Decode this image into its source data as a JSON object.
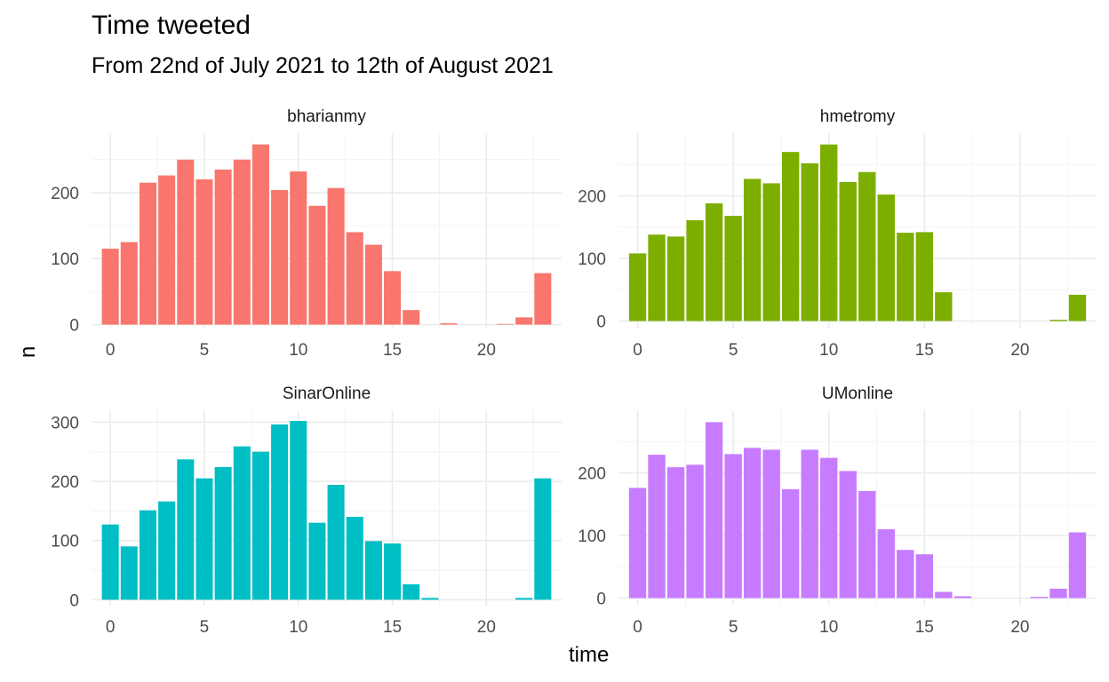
{
  "title": "Time tweeted",
  "subtitle": "From 22nd of July 2021 to 12th of August 2021",
  "xlabel": "time",
  "ylabel": "n",
  "chart_data": {
    "type": "bar",
    "grid": true,
    "facets": [
      {
        "name": "bharianmy",
        "color": "#F8766D",
        "x": [
          0,
          1,
          2,
          3,
          4,
          5,
          6,
          7,
          8,
          9,
          10,
          11,
          12,
          13,
          14,
          15,
          16,
          17,
          18,
          19,
          20,
          21,
          22,
          23
        ],
        "values": [
          115,
          125,
          215,
          226,
          250,
          220,
          235,
          250,
          273,
          204,
          232,
          180,
          207,
          140,
          121,
          81,
          22,
          0,
          2,
          0,
          0,
          1,
          11,
          78
        ],
        "xticks": [
          0,
          5,
          10,
          15,
          20
        ],
        "yticks": [
          0,
          100,
          200
        ],
        "xlim": [
          -1,
          24
        ],
        "ylim": [
          -6,
          290
        ]
      },
      {
        "name": "hmetromy",
        "color": "#7CAE00",
        "x": [
          0,
          1,
          2,
          3,
          4,
          5,
          6,
          7,
          8,
          9,
          10,
          11,
          12,
          13,
          14,
          15,
          16,
          17,
          18,
          19,
          20,
          21,
          22,
          23
        ],
        "values": [
          108,
          138,
          135,
          161,
          188,
          168,
          227,
          220,
          270,
          252,
          282,
          222,
          238,
          202,
          141,
          142,
          46,
          0,
          0,
          0,
          0,
          0,
          2,
          42
        ],
        "xticks": [
          0,
          5,
          10,
          15,
          20
        ],
        "yticks": [
          0,
          100,
          200
        ],
        "xlim": [
          -1,
          24
        ],
        "ylim": [
          -12,
          300
        ]
      },
      {
        "name": "SinarOnline",
        "color": "#00BFC4",
        "x": [
          0,
          1,
          2,
          3,
          4,
          5,
          6,
          7,
          8,
          9,
          10,
          11,
          12,
          13,
          14,
          15,
          16,
          17,
          18,
          19,
          20,
          21,
          22,
          23
        ],
        "values": [
          127,
          90,
          151,
          166,
          237,
          205,
          224,
          259,
          250,
          296,
          302,
          130,
          194,
          140,
          99,
          95,
          26,
          3,
          0,
          0,
          0,
          0,
          3,
          205
        ],
        "xticks": [
          0,
          5,
          10,
          15,
          20
        ],
        "yticks": [
          0,
          100,
          200,
          300
        ],
        "xlim": [
          -1,
          24
        ],
        "ylim": [
          -10,
          320
        ]
      },
      {
        "name": "UMonline",
        "color": "#C77CFF",
        "x": [
          0,
          1,
          2,
          3,
          4,
          5,
          6,
          7,
          8,
          9,
          10,
          11,
          12,
          13,
          14,
          15,
          16,
          17,
          18,
          19,
          20,
          21,
          22,
          23
        ],
        "values": [
          176,
          229,
          209,
          213,
          281,
          230,
          240,
          237,
          174,
          237,
          224,
          203,
          171,
          110,
          77,
          70,
          10,
          3,
          0,
          0,
          0,
          2,
          15,
          105
        ],
        "xticks": [
          0,
          5,
          10,
          15,
          20
        ],
        "yticks": [
          0,
          100,
          200
        ],
        "xlim": [
          -1,
          24
        ],
        "ylim": [
          -12,
          300
        ]
      }
    ]
  }
}
